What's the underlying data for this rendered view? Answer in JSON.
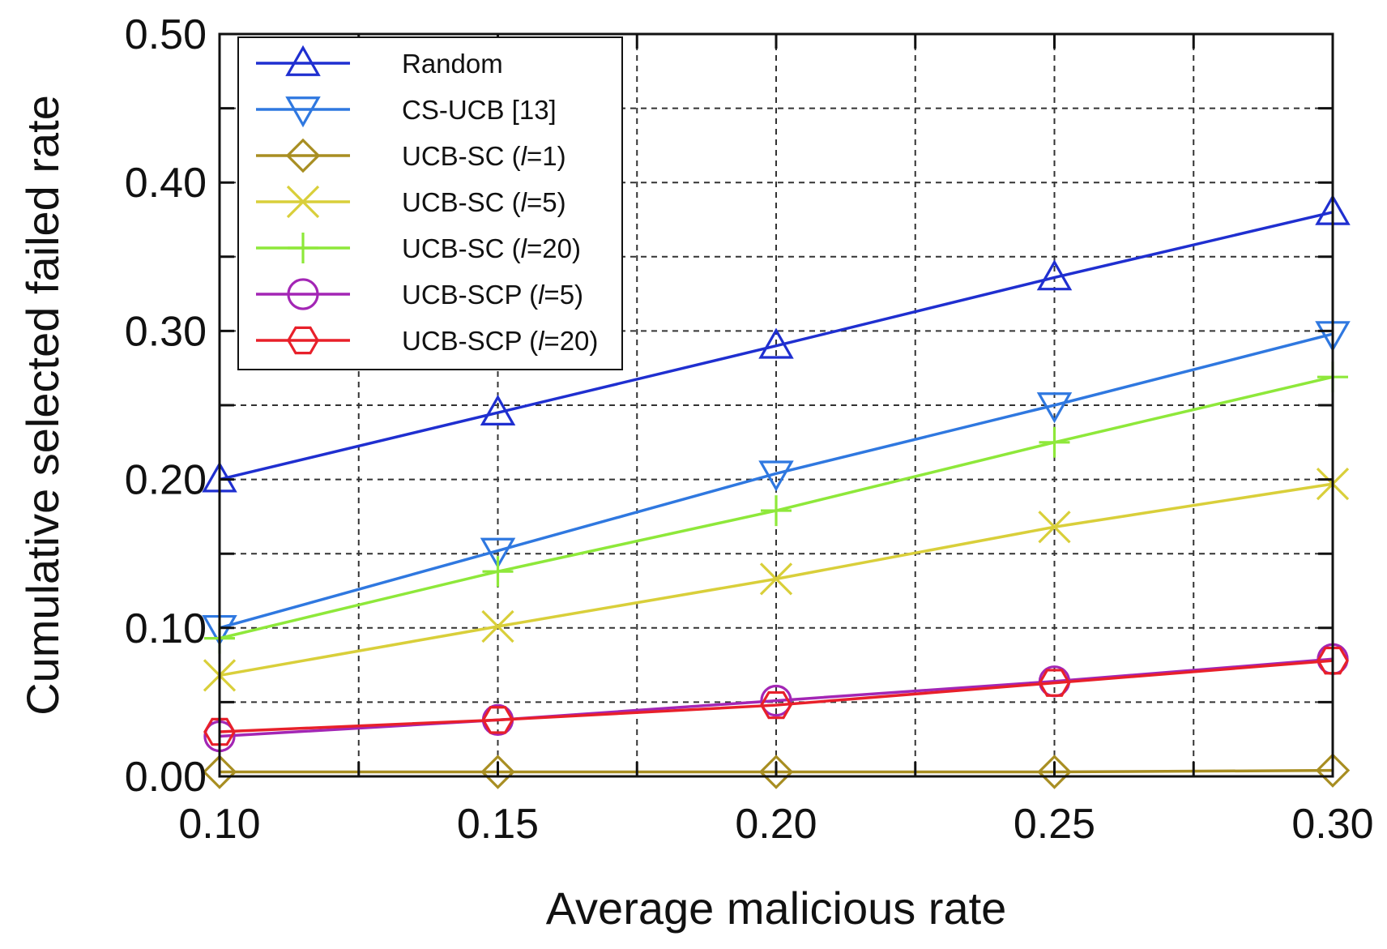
{
  "chart_data": {
    "type": "line",
    "title": "",
    "xlabel": "Average malicious rate",
    "ylabel": "Cumulative selected failed rate",
    "xlim": [
      0.1,
      0.3
    ],
    "ylim": [
      0.0,
      0.5
    ],
    "x": [
      0.1,
      0.15,
      0.2,
      0.25,
      0.3
    ],
    "x_tick_labels": [
      "0.10",
      "0.15",
      "0.20",
      "0.25",
      "0.30"
    ],
    "y_tick_labels": [
      "0.00",
      "0.10",
      "0.20",
      "0.30",
      "0.40",
      "0.50"
    ],
    "grid": "dashed",
    "legend_position": "top-left",
    "series": [
      {
        "name": "Random",
        "label_pre": "Random",
        "label_ital": "",
        "label_post": "",
        "marker": "triangle-up",
        "color": "#1f2fd0",
        "values": [
          0.2,
          0.245,
          0.29,
          0.336,
          0.38
        ]
      },
      {
        "name": "CS-UCB [13]",
        "label_pre": "CS-UCB [13]",
        "label_ital": "",
        "label_post": "",
        "marker": "triangle-down",
        "color": "#2f78e0",
        "values": [
          0.1,
          0.152,
          0.204,
          0.25,
          0.298
        ]
      },
      {
        "name": "UCB-SC (l=1)",
        "label_pre": "UCB-SC (",
        "label_ital": "l",
        "label_post": "=1)",
        "marker": "diamond",
        "color": "#a88e22",
        "values": [
          0.003,
          0.003,
          0.003,
          0.003,
          0.004
        ]
      },
      {
        "name": "UCB-SC (l=5)",
        "label_pre": "UCB-SC (",
        "label_ital": "l",
        "label_post": "=5)",
        "marker": "x",
        "color": "#d9cf3a",
        "values": [
          0.068,
          0.101,
          0.133,
          0.168,
          0.197
        ]
      },
      {
        "name": "UCB-SC (l=20)",
        "label_pre": "UCB-SC (",
        "label_ital": "l",
        "label_post": "=20)",
        "marker": "plus",
        "color": "#8ee83a",
        "values": [
          0.093,
          0.138,
          0.179,
          0.225,
          0.269
        ]
      },
      {
        "name": "UCB-SCP (l=5)",
        "label_pre": "UCB-SCP (",
        "label_ital": "l",
        "label_post": "=5)",
        "marker": "circle",
        "color": "#a326b5",
        "values": [
          0.027,
          0.038,
          0.051,
          0.064,
          0.079
        ]
      },
      {
        "name": "UCB-SCP (l=20)",
        "label_pre": "UCB-SCP (",
        "label_ital": "l",
        "label_post": "=20)",
        "marker": "hexagon",
        "color": "#e8202a",
        "values": [
          0.03,
          0.038,
          0.048,
          0.063,
          0.078
        ]
      }
    ]
  }
}
